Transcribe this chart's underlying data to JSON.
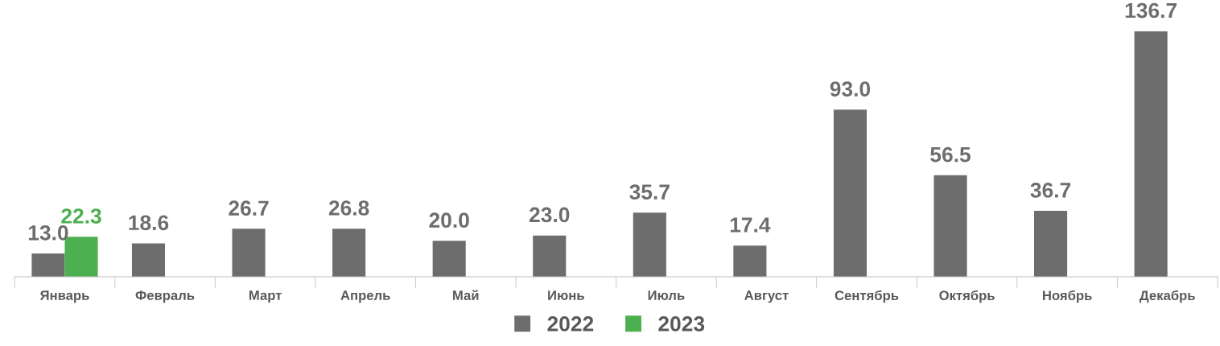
{
  "chart_data": {
    "type": "bar",
    "categories": [
      "Январь",
      "Февраль",
      "Март",
      "Апрель",
      "Май",
      "Июнь",
      "Июль",
      "Август",
      "Сентябрь",
      "Октябрь",
      "Ноябрь",
      "Декабрь"
    ],
    "series": [
      {
        "name": "2022",
        "color": "#6d6d6d",
        "values": [
          13.0,
          18.6,
          26.7,
          26.8,
          20.0,
          23.0,
          35.7,
          17.4,
          93.0,
          56.5,
          36.7,
          136.7
        ],
        "value_labels": [
          "13.0",
          "18.6",
          "26.7",
          "26.8",
          "20.0",
          "23.0",
          "35.7",
          "17.4",
          "93.0",
          "56.5",
          "36.7",
          "136.7"
        ]
      },
      {
        "name": "2023",
        "color": "#4caf50",
        "values": [
          22.3,
          null,
          null,
          null,
          null,
          null,
          null,
          null,
          null,
          null,
          null,
          null
        ],
        "value_labels": [
          "22.3",
          null,
          null,
          null,
          null,
          null,
          null,
          null,
          null,
          null,
          null,
          null
        ]
      }
    ],
    "legend": "bottom",
    "grid": false
  }
}
